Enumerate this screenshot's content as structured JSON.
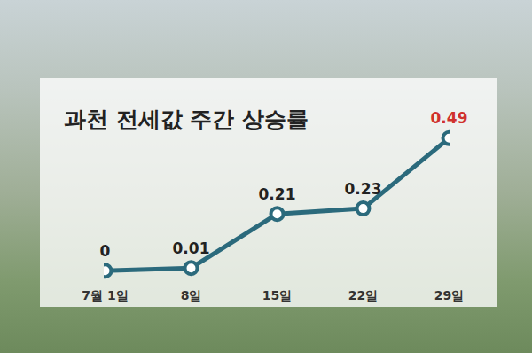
{
  "chart_data": {
    "type": "line",
    "title": "과천 전세값 주간 상승률",
    "categories": [
      "7월 1일",
      "8일",
      "15일",
      "22일",
      "29일"
    ],
    "values": [
      0,
      0.01,
      0.21,
      0.23,
      0.49
    ],
    "color": "#2b6a7c",
    "colors": [
      "#222222",
      "#222222",
      "#222222",
      "#222222",
      "#d0312d"
    ],
    "marker": "circle",
    "ylim": [
      -0.05,
      0.55
    ],
    "data_labels": true,
    "tick_labels": "x",
    "grid": false
  }
}
